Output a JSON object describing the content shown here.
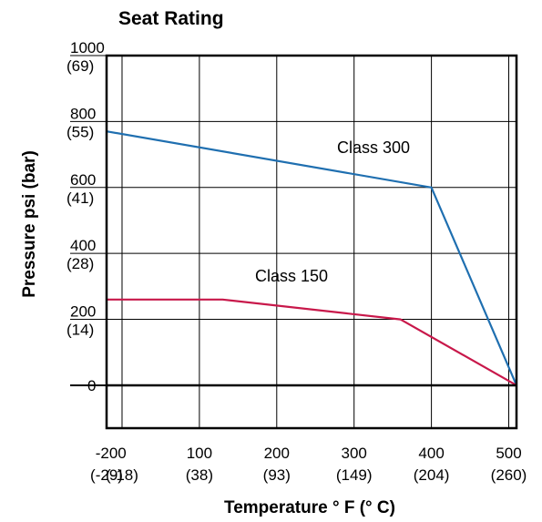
{
  "chart_data": {
    "type": "line",
    "title": "Seat Rating",
    "xlabel": "Temperature ° F (° C)",
    "ylabel": "Pressure psi (bar)",
    "xlim": [
      -20,
      510
    ],
    "ylim": [
      -130,
      1000
    ],
    "x_ticks": [
      {
        "value": -20,
        "line1": "-20",
        "line2": "(-29)"
      },
      {
        "value": 0,
        "line1": "0",
        "line2": "(-18)"
      },
      {
        "value": 100,
        "line1": "100",
        "line2": "(38)"
      },
      {
        "value": 200,
        "line1": "200",
        "line2": "(93)"
      },
      {
        "value": 300,
        "line1": "300",
        "line2": "(149)"
      },
      {
        "value": 400,
        "line1": "400",
        "line2": "(204)"
      },
      {
        "value": 500,
        "line1": "500",
        "line2": "(260)"
      }
    ],
    "y_ticks": [
      {
        "value": 0,
        "line1": "0",
        "line2": ""
      },
      {
        "value": 200,
        "line1": "200",
        "line2": "(14)"
      },
      {
        "value": 400,
        "line1": "400",
        "line2": "(28)"
      },
      {
        "value": 600,
        "line1": "600",
        "line2": "(41)"
      },
      {
        "value": 800,
        "line1": "800",
        "line2": "(55)"
      },
      {
        "value": 1000,
        "line1": "1000",
        "line2": "(69)"
      }
    ],
    "grid": true,
    "series": [
      {
        "name": "Class 300",
        "color": "#1f6fb0",
        "x": [
          -20,
          400,
          510
        ],
        "y": [
          770,
          600,
          0
        ]
      },
      {
        "name": "Class 150",
        "color": "#c8184a",
        "x": [
          -20,
          130,
          360,
          510
        ],
        "y": [
          260,
          260,
          200,
          0
        ]
      }
    ]
  }
}
